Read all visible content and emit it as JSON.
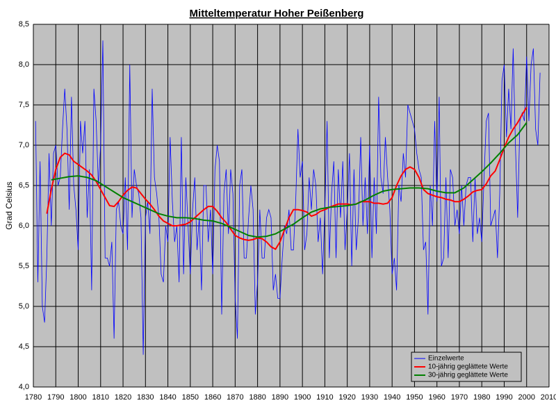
{
  "chart_data": {
    "type": "line",
    "title": "Mitteltemperatur Hoher Peißenberg",
    "y_label": "Grad Celsius",
    "xlim": [
      1780,
      2010
    ],
    "xticks": [
      1780,
      1790,
      1800,
      1810,
      1820,
      1830,
      1840,
      1850,
      1860,
      1870,
      1880,
      1890,
      1900,
      1910,
      1920,
      1930,
      1940,
      1950,
      1960,
      1970,
      1980,
      1990,
      2000,
      2010
    ],
    "ylim": [
      4.0,
      8.5
    ],
    "yticks": [
      {
        "value": 4.0,
        "label": "4,0"
      },
      {
        "value": 4.5,
        "label": "4,5"
      },
      {
        "value": 5.0,
        "label": "5,0"
      },
      {
        "value": 5.5,
        "label": "5,5"
      },
      {
        "value": 6.0,
        "label": "6,0"
      },
      {
        "value": 6.5,
        "label": "6,5"
      },
      {
        "value": 7.0,
        "label": "7,0"
      },
      {
        "value": 7.5,
        "label": "7,5"
      },
      {
        "value": 8.0,
        "label": "8,0"
      },
      {
        "value": 8.5,
        "label": "8,5"
      }
    ],
    "grid": true,
    "legend": "bottom-right",
    "series": [
      {
        "name": "Einzelwerte",
        "color": "#0000ff",
        "x": [
          1781,
          1782,
          1783,
          1784,
          1785,
          1786,
          1787,
          1788,
          1789,
          1790,
          1791,
          1792,
          1793,
          1794,
          1795,
          1796,
          1797,
          1798,
          1799,
          1800,
          1801,
          1802,
          1803,
          1804,
          1805,
          1806,
          1807,
          1808,
          1809,
          1810,
          1811,
          1812,
          1813,
          1814,
          1815,
          1816,
          1817,
          1818,
          1819,
          1820,
          1821,
          1822,
          1823,
          1824,
          1825,
          1826,
          1827,
          1828,
          1829,
          1830,
          1831,
          1832,
          1833,
          1834,
          1835,
          1836,
          1837,
          1838,
          1839,
          1840,
          1841,
          1842,
          1843,
          1844,
          1845,
          1846,
          1847,
          1848,
          1849,
          1850,
          1851,
          1852,
          1853,
          1854,
          1855,
          1856,
          1857,
          1858,
          1859,
          1860,
          1861,
          1862,
          1863,
          1864,
          1865,
          1866,
          1867,
          1868,
          1869,
          1870,
          1871,
          1872,
          1873,
          1874,
          1875,
          1876,
          1877,
          1878,
          1879,
          1880,
          1881,
          1882,
          1883,
          1884,
          1885,
          1886,
          1887,
          1888,
          1889,
          1890,
          1891,
          1892,
          1893,
          1894,
          1895,
          1896,
          1897,
          1898,
          1899,
          1900,
          1901,
          1902,
          1903,
          1904,
          1905,
          1906,
          1907,
          1908,
          1909,
          1910,
          1911,
          1912,
          1913,
          1914,
          1915,
          1916,
          1917,
          1918,
          1919,
          1920,
          1921,
          1922,
          1923,
          1924,
          1925,
          1926,
          1927,
          1928,
          1929,
          1930,
          1931,
          1932,
          1933,
          1934,
          1935,
          1936,
          1937,
          1938,
          1939,
          1940,
          1941,
          1942,
          1943,
          1944,
          1945,
          1946,
          1947,
          1948,
          1949,
          1950,
          1951,
          1952,
          1953,
          1954,
          1955,
          1956,
          1957,
          1958,
          1959,
          1960,
          1961,
          1962,
          1963,
          1964,
          1965,
          1966,
          1967,
          1968,
          1969,
          1970,
          1971,
          1972,
          1973,
          1974,
          1975,
          1976,
          1977,
          1978,
          1979,
          1980,
          1981,
          1982,
          1983,
          1984,
          1985,
          1986,
          1987,
          1988,
          1989,
          1990,
          1991,
          1992,
          1993,
          1994,
          1995,
          1996,
          1997,
          1998,
          1999,
          2000,
          2001,
          2002,
          2003,
          2004,
          2005,
          2006
        ],
        "values": [
          7.3,
          5.3,
          6.8,
          5.0,
          4.8,
          5.6,
          6.9,
          6.0,
          6.9,
          7.0,
          6.5,
          6.6,
          7.2,
          7.7,
          7.2,
          6.2,
          7.6,
          6.5,
          6.2,
          5.7,
          7.3,
          6.9,
          7.3,
          6.1,
          6.7,
          5.2,
          7.7,
          7.3,
          6.5,
          7.0,
          8.3,
          5.6,
          5.6,
          5.5,
          5.8,
          4.6,
          6.2,
          6.3,
          6.0,
          5.9,
          6.6,
          5.7,
          8.0,
          6.1,
          6.7,
          6.5,
          6.4,
          6.1,
          4.4,
          6.1,
          6.3,
          5.9,
          7.7,
          6.6,
          6.4,
          6.1,
          5.4,
          5.3,
          6.0,
          5.8,
          7.1,
          6.3,
          5.8,
          6.0,
          5.3,
          7.1,
          5.4,
          6.6,
          6.0,
          5.4,
          6.2,
          6.6,
          5.7,
          6.1,
          5.2,
          6.5,
          6.5,
          5.8,
          6.2,
          5.4,
          6.7,
          7.0,
          6.8,
          4.9,
          6.4,
          6.7,
          5.9,
          6.7,
          6.4,
          5.1,
          4.6,
          6.5,
          6.7,
          5.6,
          5.6,
          6.1,
          6.5,
          6.2,
          4.9,
          5.3,
          6.2,
          5.6,
          5.6,
          6.1,
          6.2,
          6.1,
          5.2,
          5.4,
          5.1,
          5.1,
          5.6,
          6.0,
          5.9,
          6.2,
          5.7,
          5.7,
          6.3,
          7.2,
          6.6,
          6.8,
          5.7,
          5.9,
          6.6,
          6.2,
          6.7,
          6.5,
          5.8,
          6.1,
          5.4,
          6.2,
          7.3,
          5.6,
          6.4,
          6.8,
          5.6,
          6.7,
          6.1,
          6.8,
          5.7,
          6.2,
          6.9,
          5.5,
          6.7,
          5.7,
          6.1,
          7.1,
          6.0,
          6.6,
          5.9,
          7.0,
          5.6,
          6.6,
          5.9,
          7.6,
          6.6,
          6.4,
          7.1,
          6.6,
          6.2,
          5.4,
          5.6,
          5.2,
          6.5,
          6.3,
          6.9,
          6.6,
          7.5,
          7.4,
          7.3,
          7.2,
          6.9,
          6.7,
          6.6,
          5.7,
          5.8,
          4.9,
          6.5,
          6.0,
          7.3,
          6.3,
          7.6,
          5.5,
          5.6,
          6.6,
          5.6,
          6.7,
          6.6,
          6.0,
          6.2,
          5.9,
          6.5,
          6.0,
          6.5,
          6.6,
          6.6,
          5.8,
          6.6,
          5.9,
          6.1,
          5.8,
          6.6,
          7.3,
          7.4,
          6.0,
          6.1,
          6.2,
          5.6,
          6.4,
          7.8,
          8.0,
          7.1,
          7.7,
          7.2,
          8.2,
          7.0,
          6.1,
          7.3,
          7.4,
          7.3,
          8.1,
          7.3,
          8.0,
          8.2,
          7.2,
          7.0,
          7.9
        ]
      },
      {
        "name": "10-jährig geglättete Werte",
        "color": "#ff0000",
        "x": [
          1786,
          1788,
          1790,
          1792,
          1794,
          1796,
          1798,
          1800,
          1802,
          1804,
          1806,
          1808,
          1810,
          1812,
          1814,
          1816,
          1818,
          1820,
          1822,
          1824,
          1826,
          1828,
          1830,
          1832,
          1834,
          1836,
          1838,
          1840,
          1842,
          1844,
          1846,
          1848,
          1850,
          1852,
          1854,
          1856,
          1858,
          1860,
          1862,
          1864,
          1866,
          1868,
          1870,
          1872,
          1874,
          1876,
          1878,
          1880,
          1882,
          1884,
          1886,
          1888,
          1890,
          1892,
          1894,
          1896,
          1898,
          1900,
          1902,
          1904,
          1906,
          1908,
          1910,
          1912,
          1914,
          1916,
          1918,
          1920,
          1922,
          1924,
          1926,
          1928,
          1930,
          1932,
          1934,
          1936,
          1938,
          1940,
          1942,
          1944,
          1946,
          1948,
          1950,
          1952,
          1954,
          1956,
          1958,
          1960,
          1962,
          1964,
          1966,
          1968,
          1970,
          1972,
          1974,
          1976,
          1978,
          1980,
          1982,
          1984,
          1986,
          1988,
          1990,
          1992,
          1994,
          1996,
          1998,
          2000
        ],
        "values": [
          6.15,
          6.45,
          6.7,
          6.85,
          6.9,
          6.88,
          6.8,
          6.76,
          6.72,
          6.68,
          6.63,
          6.55,
          6.45,
          6.35,
          6.25,
          6.24,
          6.3,
          6.38,
          6.44,
          6.48,
          6.47,
          6.4,
          6.33,
          6.27,
          6.2,
          6.12,
          6.06,
          6.03,
          6.0,
          6.0,
          6.01,
          6.02,
          6.05,
          6.1,
          6.15,
          6.2,
          6.24,
          6.24,
          6.18,
          6.1,
          6.04,
          5.96,
          5.88,
          5.85,
          5.83,
          5.82,
          5.83,
          5.85,
          5.84,
          5.8,
          5.74,
          5.71,
          5.8,
          5.95,
          6.1,
          6.2,
          6.2,
          6.19,
          6.17,
          6.12,
          6.14,
          6.18,
          6.2,
          6.23,
          6.25,
          6.27,
          6.27,
          6.27,
          6.26,
          6.27,
          6.3,
          6.3,
          6.3,
          6.28,
          6.28,
          6.27,
          6.28,
          6.35,
          6.5,
          6.62,
          6.7,
          6.73,
          6.7,
          6.6,
          6.45,
          6.4,
          6.38,
          6.36,
          6.35,
          6.33,
          6.32,
          6.3,
          6.3,
          6.33,
          6.37,
          6.42,
          6.44,
          6.45,
          6.52,
          6.62,
          6.68,
          6.82,
          6.97,
          7.1,
          7.2,
          7.28,
          7.38,
          7.47
        ]
      },
      {
        "name": "30-jährig geglättete Werte",
        "color": "#008000",
        "x": [
          1788,
          1792,
          1796,
          1800,
          1804,
          1808,
          1812,
          1816,
          1820,
          1824,
          1828,
          1832,
          1836,
          1840,
          1844,
          1848,
          1852,
          1856,
          1860,
          1864,
          1868,
          1872,
          1876,
          1880,
          1884,
          1888,
          1892,
          1896,
          1900,
          1904,
          1908,
          1912,
          1916,
          1920,
          1924,
          1928,
          1932,
          1936,
          1940,
          1944,
          1948,
          1952,
          1956,
          1960,
          1964,
          1968,
          1972,
          1976,
          1980,
          1984,
          1988,
          1992,
          1996,
          2000
        ],
        "values": [
          6.57,
          6.59,
          6.61,
          6.62,
          6.6,
          6.56,
          6.49,
          6.42,
          6.35,
          6.3,
          6.25,
          6.2,
          6.15,
          6.12,
          6.1,
          6.1,
          6.09,
          6.07,
          6.06,
          6.03,
          5.98,
          5.93,
          5.88,
          5.86,
          5.87,
          5.9,
          5.96,
          6.02,
          6.1,
          6.17,
          6.21,
          6.23,
          6.24,
          6.25,
          6.27,
          6.32,
          6.38,
          6.43,
          6.45,
          6.46,
          6.47,
          6.47,
          6.46,
          6.43,
          6.41,
          6.41,
          6.47,
          6.57,
          6.67,
          6.78,
          6.9,
          7.03,
          7.13,
          7.28
        ]
      }
    ]
  }
}
